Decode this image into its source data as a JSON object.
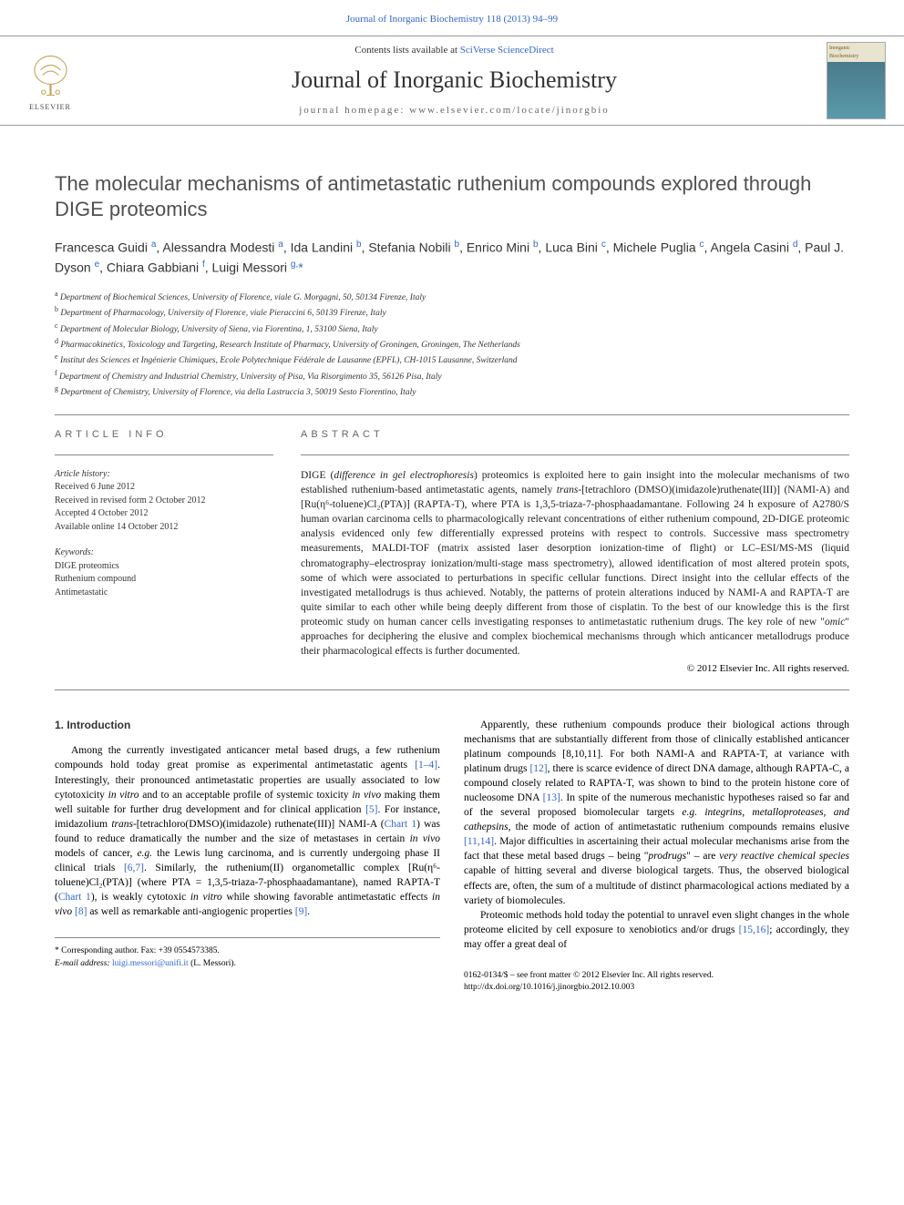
{
  "header": {
    "top_link": "Journal of Inorganic Biochemistry 118 (2013) 94–99",
    "contents_prefix": "Contents lists available at ",
    "contents_link": "SciVerse ScienceDirect",
    "journal_name": "Journal of Inorganic Biochemistry",
    "homepage_prefix": "journal homepage: ",
    "homepage_url": "www.elsevier.com/locate/jinorgbio",
    "publisher": "ELSEVIER",
    "cover_label_1": "Inorganic",
    "cover_label_2": "Biochemistry"
  },
  "article": {
    "title": "The molecular mechanisms of antimetastatic ruthenium compounds explored through DIGE proteomics",
    "authors_html": "Francesca Guidi <sup class='sup'>a</sup>, Alessandra Modesti <sup class='sup'>a</sup>, Ida Landini <sup class='sup'>b</sup>, Stefania Nobili <sup class='sup'>b</sup>, Enrico Mini <sup class='sup'>b</sup>, Luca Bini <sup class='sup'>c</sup>, Michele Puglia <sup class='sup'>c</sup>, Angela Casini <sup class='sup'>d</sup>, Paul J. Dyson <sup class='sup'>e</sup>, Chiara Gabbiani <sup class='sup'>f</sup>, Luigi Messori <sup class='sup'>g,</sup><span class='star'>*</span>",
    "affiliations": [
      {
        "sup": "a",
        "text": "Department of Biochemical Sciences, University of Florence, viale G. Morgagni, 50, 50134 Firenze, Italy"
      },
      {
        "sup": "b",
        "text": "Department of Pharmacology, University of Florence, viale Pieraccini 6, 50139 Firenze, Italy"
      },
      {
        "sup": "c",
        "text": "Department of Molecular Biology, University of Siena, via Fiorentina, 1, 53100 Siena, Italy"
      },
      {
        "sup": "d",
        "text": "Pharmacokinetics, Toxicology and Targeting, Research Institute of Pharmacy, University of Groningen, Groningen, The Netherlands"
      },
      {
        "sup": "e",
        "text": "Institut des Sciences et Ingénierie Chimiques, Ecole Polytechnique Fédérale de Lausanne (EPFL), CH-1015 Lausanne, Switzerland"
      },
      {
        "sup": "f",
        "text": "Department of Chemistry and Industrial Chemistry, University of Pisa, Via Risorgimento 35, 56126 Pisa, Italy"
      },
      {
        "sup": "g",
        "text": "Department of Chemistry, University of Florence, via della Lastruccia 3, 50019 Sesto Fiorentino, Italy"
      }
    ]
  },
  "info": {
    "heading": "article info",
    "history_label": "Article history:",
    "received": "Received 6 June 2012",
    "revised": "Received in revised form 2 October 2012",
    "accepted": "Accepted 4 October 2012",
    "online": "Available online 14 October 2012",
    "keywords_label": "Keywords:",
    "keywords": [
      "DIGE proteomics",
      "Ruthenium compound",
      "Antimetastatic"
    ]
  },
  "abstract": {
    "heading": "abstract",
    "text": "DIGE (difference in gel electrophoresis) proteomics is exploited here to gain insight into the molecular mechanisms of two established ruthenium-based antimetastatic agents, namely trans-[tetrachloro (DMSO)(imidazole)ruthenate(III)] (NAMI-A) and [Ru(η⁶-toluene)Cl₂(PTA)] (RAPTA-T), where PTA is 1,3,5-triaza-7-phosphaadamantane. Following 24 h exposure of A2780/S human ovarian carcinoma cells to pharmacologically relevant concentrations of either ruthenium compound, 2D-DIGE proteomic analysis evidenced only few differentially expressed proteins with respect to controls. Successive mass spectrometry measurements, MALDI-TOF (matrix assisted laser desorption ionization-time of flight) or LC–ESI/MS-MS (liquid chromatography–electrospray ionization/multi-stage mass spectrometry), allowed identification of most altered protein spots, some of which were associated to perturbations in specific cellular functions. Direct insight into the cellular effects of the investigated metallodrugs is thus achieved. Notably, the patterns of protein alterations induced by NAMI-A and RAPTA-T are quite similar to each other while being deeply different from those of cisplatin. To the best of our knowledge this is the first proteomic study on human cancer cells investigating responses to antimetastatic ruthenium drugs. The key role of new \"omic\" approaches for deciphering the elusive and complex biochemical mechanisms through which anticancer metallodrugs produce their pharmacological effects is further documented.",
    "copyright": "© 2012 Elsevier Inc. All rights reserved."
  },
  "body": {
    "heading": "1. Introduction",
    "left_p1": "Among the currently investigated anticancer metal based drugs, a few ruthenium compounds hold today great promise as experimental antimetastatic agents [1–4]. Interestingly, their pronounced antimetastatic properties are usually associated to low cytotoxicity in vitro and to an acceptable profile of systemic toxicity in vivo making them well suitable for further drug development and for clinical application [5]. For instance, imidazolium trans-[tetrachloro(DMSO)(imidazole) ruthenate(III)] NAMI-A (Chart 1) was found to reduce dramatically the number and the size of metastases in certain in vivo models of cancer, e.g. the Lewis lung carcinoma, and is currently undergoing phase II clinical trials [6,7]. Similarly, the ruthenium(II) organometallic complex [Ru(η⁶-toluene)Cl₂(PTA)] (where PTA = 1,3,5-triaza-7-phosphaadamantane), named RAPTA-T (Chart 1), is weakly cytotoxic in vitro while showing favorable antimetastatic effects in vivo [8] as well as remarkable anti-angiogenic properties [9].",
    "right_p1": "Apparently, these ruthenium compounds produce their biological actions through mechanisms that are substantially different from those of clinically established anticancer platinum compounds [8,10,11]. For both NAMI-A and RAPTA-T, at variance with platinum drugs [12], there is scarce evidence of direct DNA damage, although RAPTA-C, a compound closely related to RAPTA-T, was shown to bind to the protein histone core of nucleosome DNA [13]. In spite of the numerous mechanistic hypotheses raised so far and of the several proposed biomolecular targets e.g. integrins, metalloproteases, and cathepsins, the mode of action of antimetastatic ruthenium compounds remains elusive [11,14]. Major difficulties in ascertaining their actual molecular mechanisms arise from the fact that these metal based drugs – being \"prodrugs\" – are very reactive chemical species capable of hitting several and diverse biological targets. Thus, the observed biological effects are, often, the sum of a multitude of distinct pharmacological actions mediated by a variety of biomolecules.",
    "right_p2": "Proteomic methods hold today the potential to unravel even slight changes in the whole proteome elicited by cell exposure to xenobiotics and/or drugs [15,16]; accordingly, they may offer a great deal of"
  },
  "footer": {
    "corresponding": "* Corresponding author. Fax: +39 0554573385.",
    "email_label": "E-mail address: ",
    "email": "luigi.messori@unifi.it",
    "email_suffix": " (L. Messori).",
    "issn": "0162-0134/$ – see front matter © 2012 Elsevier Inc. All rights reserved.",
    "doi": "http://dx.doi.org/10.1016/j.jinorgbio.2012.10.003"
  },
  "colors": {
    "link": "#3366cc",
    "gray_text": "#666666",
    "border": "#888888"
  }
}
